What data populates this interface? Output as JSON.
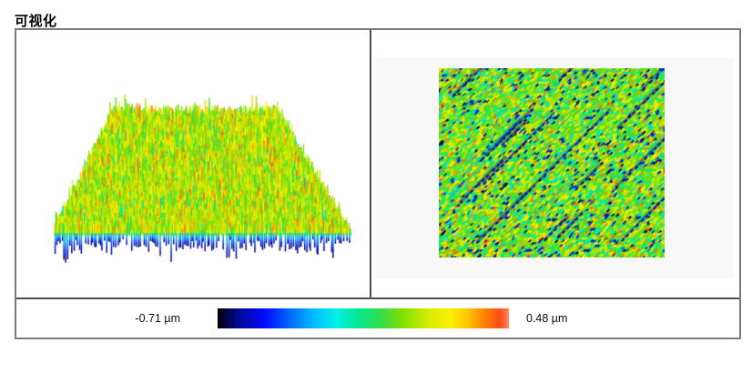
{
  "page": {
    "title": "可视化"
  },
  "figure": {
    "left_panel": {
      "name": "3D surface view"
    },
    "right_panel": {
      "name": "2D height map view"
    },
    "colorbar": {
      "min_label": "-0.71 µm",
      "max_label": "0.48 µm",
      "stops": [
        [
          0.0,
          "#000006"
        ],
        [
          0.07,
          "#000a92"
        ],
        [
          0.16,
          "#0009ff"
        ],
        [
          0.26,
          "#0076ff"
        ],
        [
          0.34,
          "#00c3ff"
        ],
        [
          0.41,
          "#00f1e4"
        ],
        [
          0.48,
          "#00e795"
        ],
        [
          0.56,
          "#31dc47"
        ],
        [
          0.64,
          "#87e000"
        ],
        [
          0.73,
          "#d9ec00"
        ],
        [
          0.8,
          "#fcf000"
        ],
        [
          0.86,
          "#ffc300"
        ],
        [
          0.92,
          "#ff7d00"
        ],
        [
          0.97,
          "#ff4e1a"
        ],
        [
          1.0,
          "#ff8a58"
        ]
      ]
    },
    "panel_bg": "#f8f8f8",
    "border_color": "#7b7b7b",
    "divider_color": "#4f4f4f"
  },
  "chart_data": {
    "type": "heatmap",
    "title": "可视化",
    "description": "Surface height visualization: 3D spiky surface plot (left) and 2D height map with diagonal texture streaks (right), shared color scale below",
    "z_range": [
      -0.71,
      0.48
    ],
    "z_unit": "µm",
    "z_min_label": "-0.71 µm",
    "z_max_label": "0.48 µm",
    "colormap": [
      "#000006",
      "#0009ff",
      "#00c3ff",
      "#00e795",
      "#87e000",
      "#fcf000",
      "#ff7d00",
      "#ff8a58"
    ],
    "legend_position": "bottom",
    "grid": false
  }
}
